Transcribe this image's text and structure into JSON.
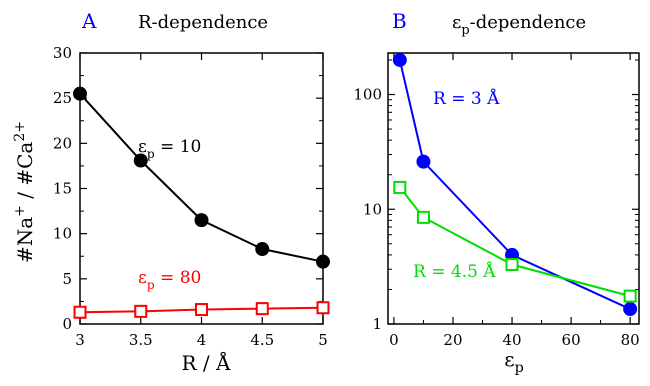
{
  "chart_data": [
    {
      "type": "line",
      "panel_letter": "A",
      "title": "R-dependence",
      "xlabel": "R / Å",
      "ylabel": "#Na+ / #Ca2+",
      "xlim": [
        3,
        5
      ],
      "ylim": [
        0,
        30
      ],
      "x_ticks": [
        "3",
        "3.5",
        "4",
        "4.5",
        "5"
      ],
      "y_ticks": [
        "0",
        "5",
        "10",
        "15",
        "20",
        "25",
        "30"
      ],
      "grid": false,
      "series": [
        {
          "label_main": "ε",
          "label_sub": "p",
          "label_rest": " = 10",
          "color": "#000000",
          "marker": "filled-circle",
          "x": [
            3,
            3.5,
            4,
            4.5,
            5
          ],
          "y": [
            25.5,
            18.1,
            11.5,
            8.3,
            6.9
          ]
        },
        {
          "label_main": "ε",
          "label_sub": "p",
          "label_rest": " = 80",
          "color": "#ff0000",
          "marker": "open-square",
          "x": [
            3,
            3.5,
            4,
            4.5,
            5
          ],
          "y": [
            1.3,
            1.4,
            1.6,
            1.7,
            1.8
          ]
        }
      ]
    },
    {
      "type": "line",
      "panel_letter": "B",
      "title_main": "ε",
      "title_sub": "p",
      "title_rest": "-dependence",
      "xlabel_main": "ε",
      "xlabel_sub": "p",
      "ylabel": "",
      "xlim": [
        -2,
        83
      ],
      "ylim": [
        1,
        230
      ],
      "yscale": "log",
      "x_ticks": [
        "0",
        "20",
        "40",
        "60",
        "80"
      ],
      "y_ticks": [
        "1",
        "10",
        "100"
      ],
      "grid": false,
      "series": [
        {
          "label": "R = 3 Å",
          "color": "#0000ff",
          "marker": "filled-circle",
          "x": [
            2,
            10,
            40,
            80
          ],
          "y": [
            200,
            26,
            4.0,
            1.35
          ]
        },
        {
          "label": "R = 4.5 Å",
          "color": "#00dd00",
          "marker": "open-square",
          "x": [
            2,
            10,
            40,
            80
          ],
          "y": [
            15.5,
            8.5,
            3.3,
            1.75
          ]
        }
      ]
    }
  ]
}
